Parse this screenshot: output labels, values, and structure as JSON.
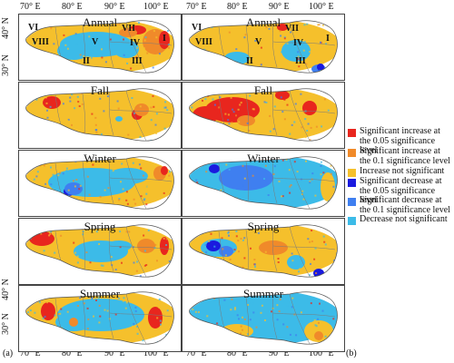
{
  "axis_labels": {
    "top_lon": [
      "70° E",
      "80° E",
      "90° E",
      "100° E"
    ],
    "bottom_lon": [
      "70° E",
      "80° E",
      "90° E",
      "100° E"
    ],
    "lat_top": [
      "40° N",
      "30° N"
    ],
    "lat_bottom": [
      "40° N",
      "30° N"
    ]
  },
  "columns": [
    {
      "caption": "(a)",
      "panels": [
        {
          "title": "Annual",
          "regions": [
            "VI",
            "VIII",
            "VII",
            "V",
            "IV",
            "I",
            "II",
            "III"
          ]
        },
        {
          "title": "Fall"
        },
        {
          "title": "Winter"
        },
        {
          "title": "Spring"
        },
        {
          "title": "Summer"
        }
      ]
    },
    {
      "caption": "(b)",
      "panels": [
        {
          "title": "Annual",
          "regions": [
            "VI",
            "VIII",
            "VII",
            "V",
            "IV",
            "I",
            "II",
            "III"
          ]
        },
        {
          "title": "Fall"
        },
        {
          "title": "Winter"
        },
        {
          "title": "Spring"
        },
        {
          "title": "Summer"
        }
      ]
    }
  ],
  "legend": [
    {
      "label": "Significant increase at the 0.05 significance level",
      "color": "#e8261e"
    },
    {
      "label": "Significant increase at the 0.1 significance level",
      "color": "#f08a2a"
    },
    {
      "label": "Increase not significant",
      "color": "#f5c02c"
    },
    {
      "label": "Significant decrease at the 0.05 significance level",
      "color": "#1a1adf"
    },
    {
      "label": "Significant decrease at the 0.1 significance level",
      "color": "#3f7ff0"
    },
    {
      "label": "Decrease not significant",
      "color": "#3cbbe8"
    }
  ]
}
